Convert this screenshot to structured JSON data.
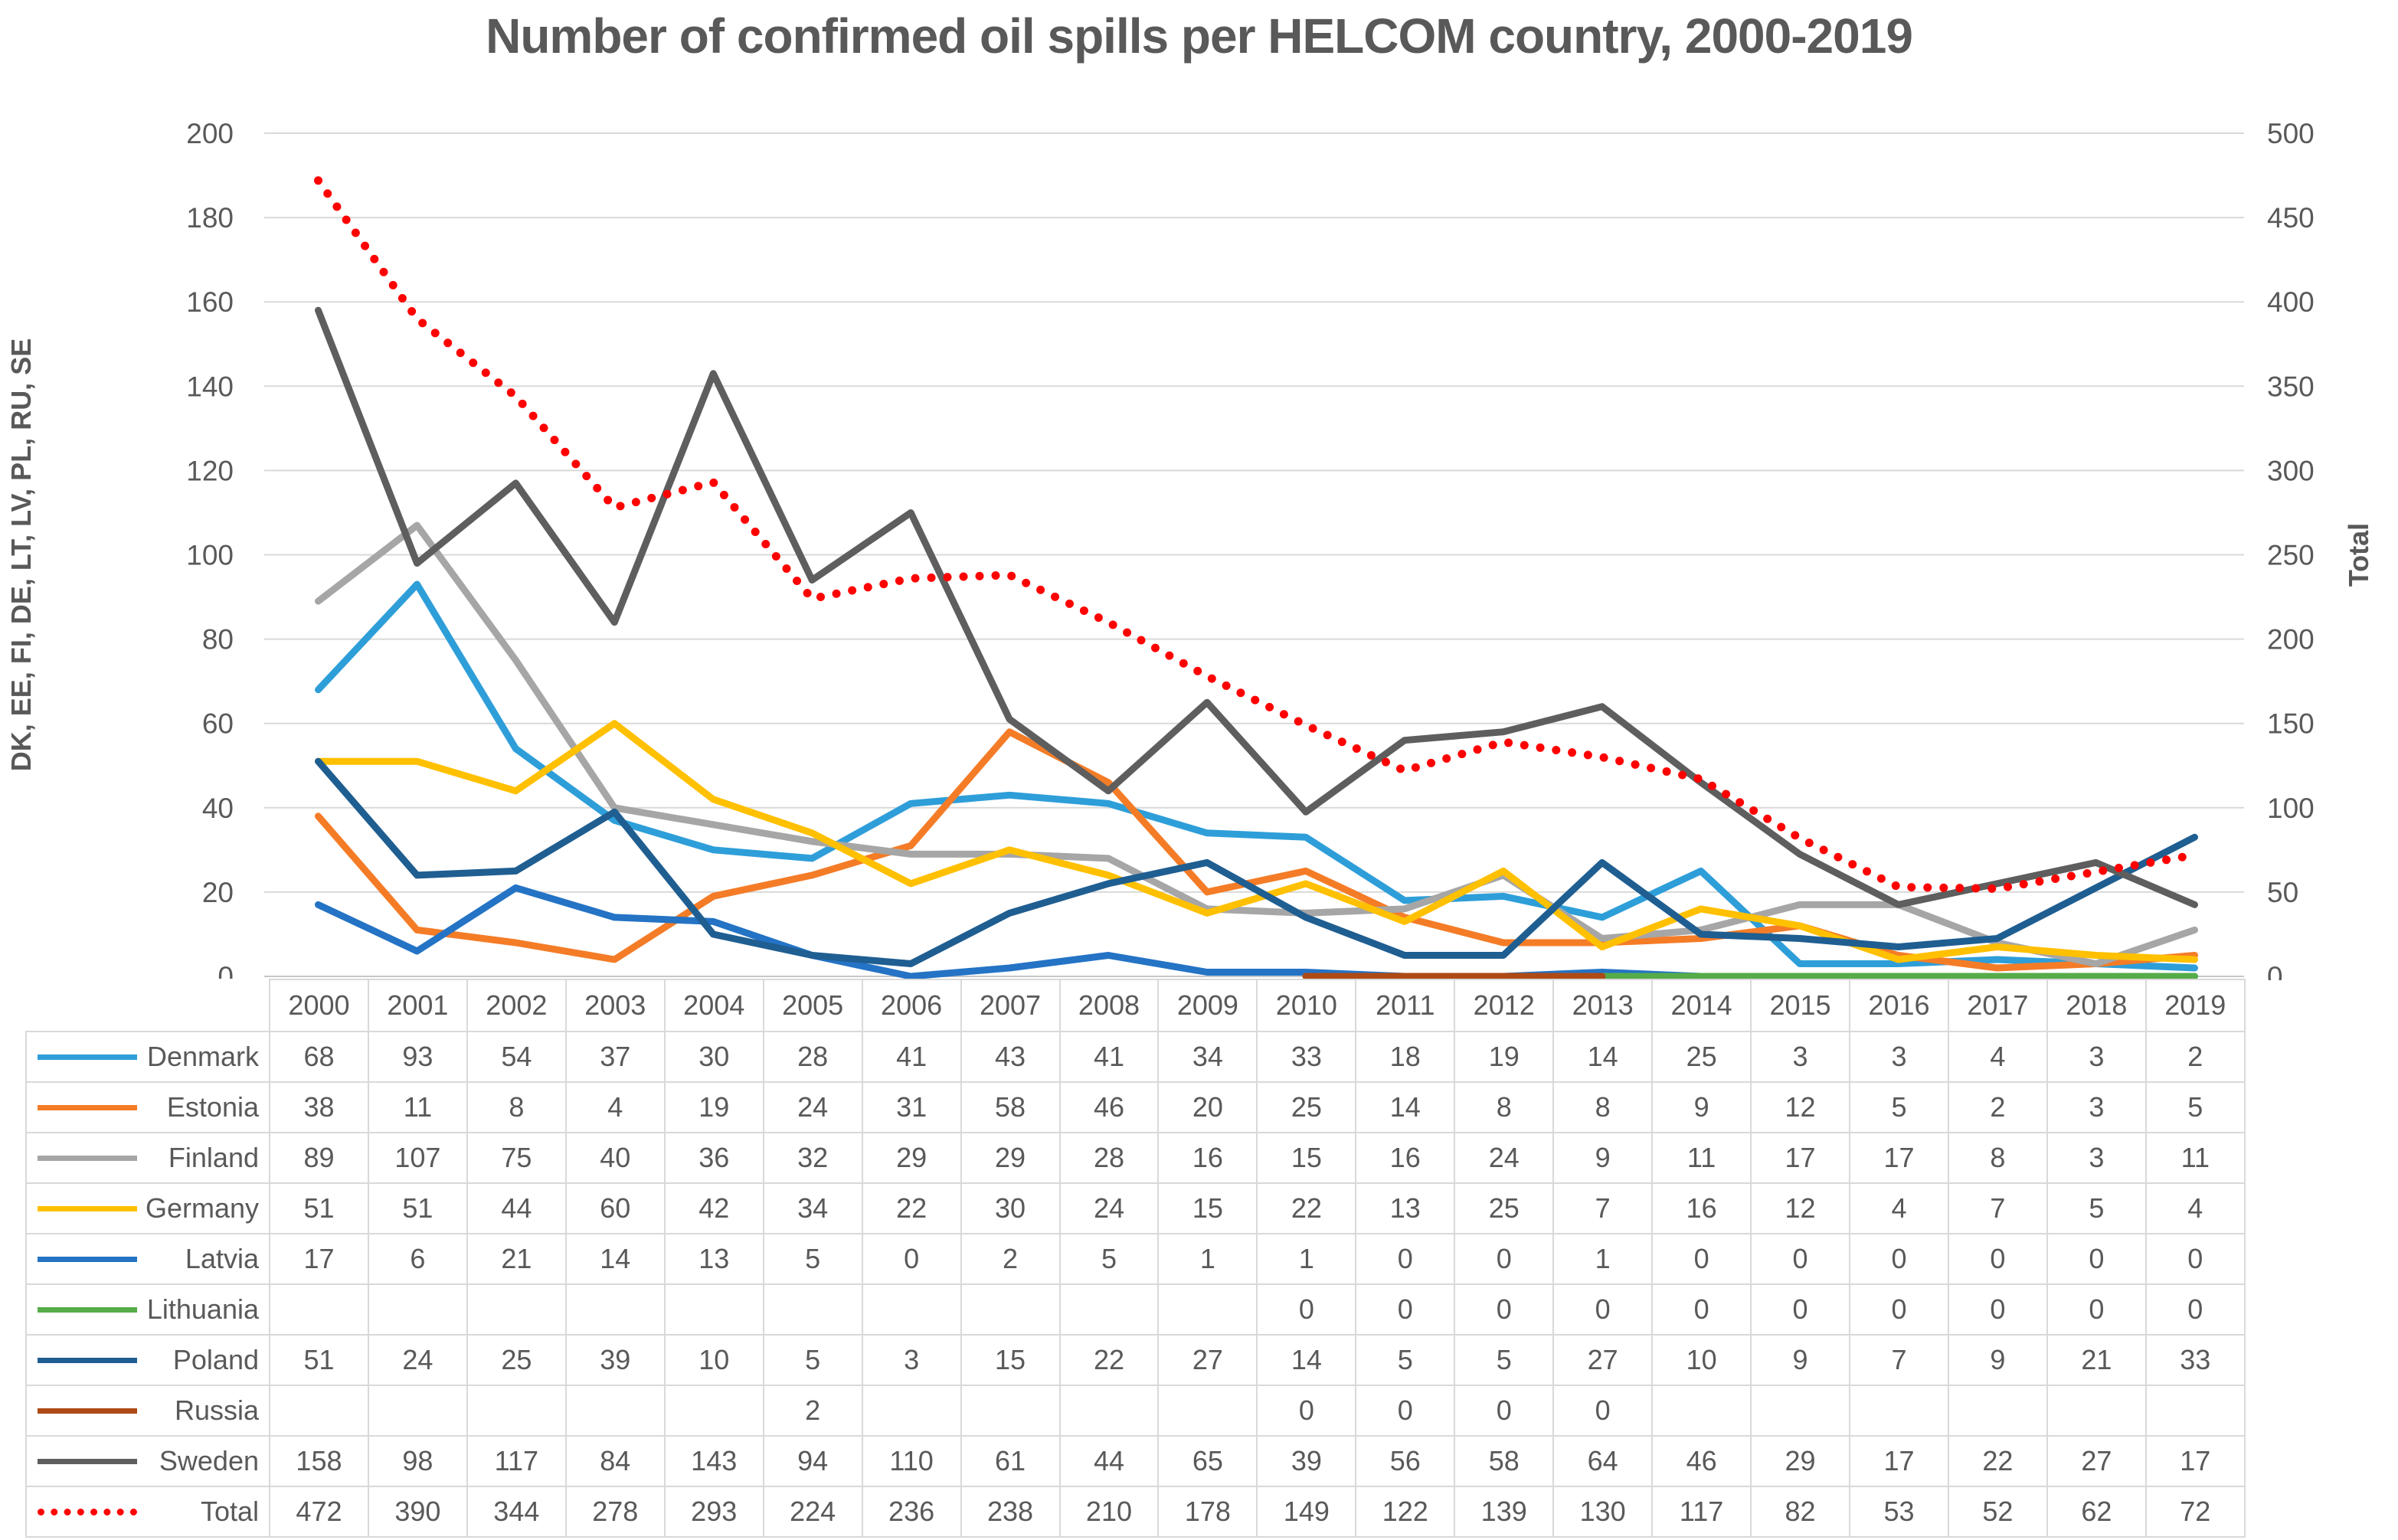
{
  "title": "Number of confirmed oil spills per HELCOM country, 2000-2019",
  "chart_data": {
    "type": "line",
    "title": "Number of confirmed oil spills per HELCOM country, 2000-2019",
    "x": [
      2000,
      2001,
      2002,
      2003,
      2004,
      2005,
      2006,
      2007,
      2008,
      2009,
      2010,
      2011,
      2012,
      2013,
      2014,
      2015,
      2016,
      2017,
      2018,
      2019
    ],
    "left_axis": {
      "label": "DK, EE, FI, DE, LT, LV, PL, RU, SE",
      "min": 0,
      "max": 200,
      "step": 20
    },
    "right_axis": {
      "label": "Total",
      "min": 0,
      "max": 500,
      "step": 50
    },
    "grid": true,
    "gridline_color": "#D9D9D9",
    "text_color": "#595959",
    "legend_position": "table-left",
    "series": [
      {
        "name": "Denmark",
        "color": "#2E9ED9",
        "axis": "left",
        "style": "solid",
        "values": [
          68,
          93,
          54,
          37,
          30,
          28,
          41,
          43,
          41,
          34,
          33,
          18,
          19,
          14,
          25,
          3,
          3,
          4,
          3,
          2
        ]
      },
      {
        "name": "Estonia",
        "color": "#F47C27",
        "axis": "left",
        "style": "solid",
        "values": [
          38,
          11,
          8,
          4,
          19,
          24,
          31,
          58,
          46,
          20,
          25,
          14,
          8,
          8,
          9,
          12,
          5,
          2,
          3,
          5
        ]
      },
      {
        "name": "Finland",
        "color": "#A6A6A6",
        "axis": "left",
        "style": "solid",
        "values": [
          89,
          107,
          75,
          40,
          36,
          32,
          29,
          29,
          28,
          16,
          15,
          16,
          24,
          9,
          11,
          17,
          17,
          8,
          3,
          11
        ]
      },
      {
        "name": "Germany",
        "color": "#FFC000",
        "axis": "left",
        "style": "solid",
        "values": [
          51,
          51,
          44,
          60,
          42,
          34,
          22,
          30,
          24,
          15,
          22,
          13,
          25,
          7,
          16,
          12,
          4,
          7,
          5,
          4
        ]
      },
      {
        "name": "Latvia",
        "color": "#2473C5",
        "axis": "left",
        "style": "solid",
        "values": [
          17,
          6,
          21,
          14,
          13,
          5,
          0,
          2,
          5,
          1,
          1,
          0,
          0,
          1,
          0,
          0,
          0,
          0,
          0,
          0
        ]
      },
      {
        "name": "Lithuania",
        "color": "#55AC49",
        "axis": "left",
        "style": "solid",
        "values": [
          null,
          null,
          null,
          null,
          null,
          null,
          null,
          null,
          null,
          null,
          0,
          0,
          0,
          0,
          0,
          0,
          0,
          0,
          0,
          0
        ]
      },
      {
        "name": "Poland",
        "color": "#1F5E91",
        "axis": "left",
        "style": "solid",
        "values": [
          51,
          24,
          25,
          39,
          10,
          5,
          3,
          15,
          22,
          27,
          14,
          5,
          5,
          27,
          10,
          9,
          7,
          9,
          21,
          33
        ]
      },
      {
        "name": "Russia",
        "color": "#AE4A15",
        "axis": "left",
        "style": "solid",
        "values": [
          null,
          null,
          null,
          null,
          null,
          2,
          null,
          null,
          null,
          null,
          0,
          0,
          0,
          0,
          null,
          null,
          null,
          null,
          null,
          null
        ]
      },
      {
        "name": "Sweden",
        "color": "#5E5E5E",
        "axis": "left",
        "style": "solid",
        "values": [
          158,
          98,
          117,
          84,
          143,
          94,
          110,
          61,
          44,
          65,
          39,
          56,
          58,
          64,
          46,
          29,
          17,
          22,
          27,
          17
        ]
      },
      {
        "name": "Total",
        "color": "#FF0000",
        "axis": "right",
        "style": "dotted",
        "values": [
          472,
          390,
          344,
          278,
          293,
          224,
          236,
          238,
          210,
          178,
          149,
          122,
          139,
          130,
          117,
          82,
          53,
          52,
          62,
          72
        ]
      }
    ]
  }
}
